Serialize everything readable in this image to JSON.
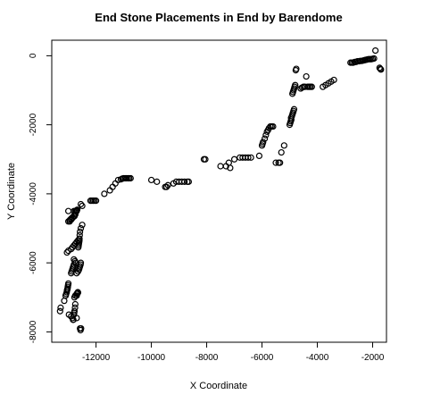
{
  "chart_data": {
    "type": "scatter",
    "title": "End Stone Placements in End by Barendome",
    "xlabel": "X Coordinate",
    "ylabel": "Y Coordinate",
    "xlim": [
      -13600,
      -1500
    ],
    "ylim": [
      -8300,
      450
    ],
    "xticks": [
      -12000,
      -10000,
      -8000,
      -6000,
      -4000,
      -2000
    ],
    "yticks": [
      0,
      -2000,
      -4000,
      -6000,
      -8000
    ],
    "marker": "open-circle",
    "series": [
      {
        "x": [
          -13300,
          -13280,
          -13150,
          -13100,
          -13080,
          -13060,
          -13050,
          -13040,
          -13030,
          -13020,
          -13010,
          -13000,
          -12980,
          -12900,
          -12850,
          -12830,
          -12820,
          -12800,
          -12790,
          -12780,
          -12760,
          -12750,
          -12700,
          -12680,
          -12660,
          -12640,
          -12630,
          -12620,
          -12610,
          -12600,
          -12600,
          -12590,
          -12580,
          -12550,
          -12500,
          -13050,
          -13000,
          -12900,
          -12850,
          -12800,
          -12750,
          -12700,
          -12650,
          -12600,
          -12700,
          -12650,
          -12620,
          -12600,
          -12580,
          -12560,
          -12550,
          -12580,
          -12560,
          -12540,
          -12950,
          -12900,
          -12850,
          -12780,
          -12760,
          -12740,
          -12720,
          -12700,
          -12680,
          -12800,
          -12760,
          -12740,
          -12900,
          -12880,
          -12860,
          -12840,
          -12820,
          -12800,
          -13000,
          -12950,
          -12900,
          -12850,
          -12800,
          -12750,
          -13000,
          -12800,
          -12750,
          -12700,
          -12780,
          -12750,
          -12700,
          -12680,
          -12650,
          -12700,
          -12550,
          -12500,
          -12200,
          -12150,
          -12100,
          -12050,
          -12000,
          -11700,
          -11500,
          -11400,
          -11300,
          -11200,
          -11100,
          -11050,
          -11000,
          -10950,
          -10900,
          -10850,
          -10800,
          -10750,
          -10000,
          -9800,
          -9500,
          -9450,
          -9400,
          -9200,
          -9100,
          -9000,
          -8900,
          -8800,
          -8700,
          -8650,
          -8100,
          -8050,
          -7500,
          -7300,
          -7200,
          -7150,
          -7000,
          -6800,
          -6700,
          -6600,
          -6500,
          -6400,
          -6100,
          -6000,
          -5980,
          -5960,
          -5900,
          -5860,
          -5820,
          -5780,
          -5750,
          -5700,
          -5650,
          -5600,
          -5500,
          -5400,
          -5350,
          -5300,
          -5200,
          -5000,
          -4980,
          -4960,
          -4940,
          -4950,
          -4920,
          -4900,
          -4880,
          -4860,
          -4840,
          -4900,
          -4880,
          -4860,
          -4840,
          -4820,
          -4800,
          -4780,
          -4760,
          -4600,
          -4550,
          -4500,
          -4450,
          -4400,
          -4350,
          -4300,
          -4250,
          -4200,
          -3800,
          -3700,
          -3600,
          -3500,
          -3400,
          -2800,
          -2750,
          -2700,
          -2650,
          -2600,
          -2550,
          -2500,
          -2450,
          -2400,
          -2350,
          -2300,
          -2250,
          -2200,
          -2150,
          -2100,
          -2050,
          -2000,
          -1950,
          -1900,
          -1750,
          -1720,
          -1700
        ],
        "y": [
          -7400,
          -7300,
          -7100,
          -6950,
          -6900,
          -6850,
          -6800,
          -6780,
          -6750,
          -6700,
          -6650,
          -6600,
          -7500,
          -7550,
          -7600,
          -7650,
          -7650,
          -7500,
          -7450,
          -7400,
          -7300,
          -7200,
          -6950,
          -6900,
          -6850,
          -5550,
          -5500,
          -5450,
          -5400,
          -5350,
          -5300,
          -5200,
          -5100,
          -5000,
          -4900,
          -5700,
          -5650,
          -5600,
          -5550,
          -5500,
          -5450,
          -5400,
          -5350,
          -5300,
          -6300,
          -6250,
          -6200,
          -6150,
          -6100,
          -6050,
          -6000,
          -7900,
          -7950,
          -7900,
          -4800,
          -4750,
          -4700,
          -4650,
          -4600,
          -4550,
          -4500,
          -4480,
          -4460,
          -5900,
          -5950,
          -6000,
          -6300,
          -6250,
          -6200,
          -6150,
          -6100,
          -6050,
          -4800,
          -4760,
          -4720,
          -4680,
          -4640,
          -4600,
          -4500,
          -4500,
          -4500,
          -4500,
          -7000,
          -6950,
          -6900,
          -6880,
          -6860,
          -7600,
          -4300,
          -4350,
          -4200,
          -4200,
          -4200,
          -4200,
          -4200,
          -4000,
          -3900,
          -3800,
          -3700,
          -3600,
          -3580,
          -3560,
          -3550,
          -3550,
          -3550,
          -3550,
          -3550,
          -3550,
          -3600,
          -3650,
          -3800,
          -3800,
          -3750,
          -3700,
          -3650,
          -3650,
          -3650,
          -3650,
          -3650,
          -3650,
          -3000,
          -3000,
          -3200,
          -3200,
          -3100,
          -3250,
          -3000,
          -2950,
          -2950,
          -2950,
          -2950,
          -2950,
          -2900,
          -2600,
          -2550,
          -2500,
          -2400,
          -2300,
          -2200,
          -2150,
          -2100,
          -2050,
          -2050,
          -2050,
          -3100,
          -3100,
          -3100,
          -2800,
          -2600,
          -2000,
          -1950,
          -1900,
          -1850,
          -1800,
          -1750,
          -1700,
          -1650,
          -1600,
          -1550,
          -1100,
          -1050,
          -1000,
          -950,
          -900,
          -850,
          -420,
          -380,
          -950,
          -920,
          -900,
          -900,
          -600,
          -900,
          -900,
          -900,
          -900,
          -900,
          -850,
          -800,
          -750,
          -700,
          -200,
          -200,
          -200,
          -180,
          -180,
          -160,
          -160,
          -150,
          -150,
          -140,
          -130,
          -120,
          -110,
          -100,
          -100,
          -100,
          -90,
          -80,
          150,
          -350,
          -380,
          -400
        ]
      }
    ]
  }
}
